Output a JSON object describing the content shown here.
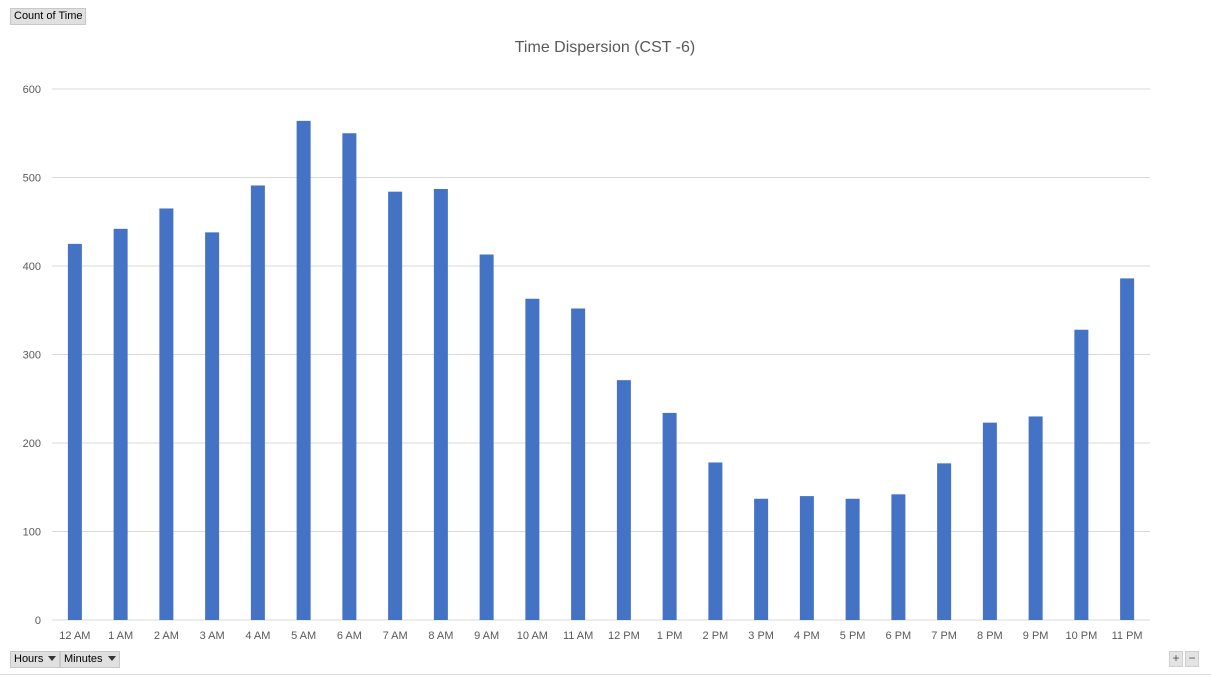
{
  "pivot": {
    "value_field": "Count of Time",
    "axis_fields": [
      {
        "label": "Hours"
      },
      {
        "label": "Minutes"
      }
    ],
    "zoom_in": "+",
    "zoom_out": "−"
  },
  "chart_data": {
    "type": "bar",
    "title": "Time Dispersion (CST -6)",
    "xlabel": "",
    "ylabel": "",
    "categories": [
      "12 AM",
      "1 AM",
      "2 AM",
      "3 AM",
      "4 AM",
      "5 AM",
      "6 AM",
      "7 AM",
      "8 AM",
      "9 AM",
      "10 AM",
      "11 AM",
      "12 PM",
      "1 PM",
      "2 PM",
      "3 PM",
      "4 PM",
      "5 PM",
      "6 PM",
      "7 PM",
      "8 PM",
      "9 PM",
      "10 PM",
      "11 PM"
    ],
    "series": [
      {
        "values": [
          425,
          442,
          465,
          438,
          491,
          564,
          550,
          484,
          487,
          413,
          363,
          352,
          271,
          234,
          178,
          137,
          140,
          137,
          142,
          177,
          223,
          230,
          328,
          386
        ],
        "color": "#4472c4"
      }
    ],
    "ylim": [
      0,
      600
    ],
    "yticks": [
      0,
      100,
      200,
      300,
      400,
      500,
      600
    ],
    "grid": true,
    "legend": "none"
  }
}
